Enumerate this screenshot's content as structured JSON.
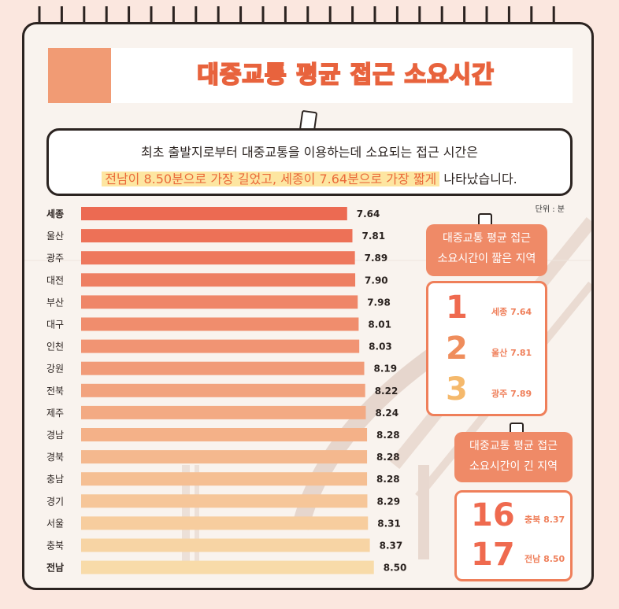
{
  "title": "대중교통 평균 접근 소요시간",
  "summary": {
    "line1": "최초 출발지로부터 대중교통을 이용하는데 소요되는 접근 시간은",
    "line2_highlight": "전남이 8.50분으로 가장 길었고, 세종이 7.64분으로 가장 짧게",
    "line2_rest": " 나타났습니다."
  },
  "unit_label": "단위 : 분",
  "chart_data": {
    "type": "bar",
    "orientation": "horizontal",
    "categories": [
      "세종",
      "울산",
      "광주",
      "대전",
      "부산",
      "대구",
      "인천",
      "강원",
      "전북",
      "제주",
      "경남",
      "경북",
      "충남",
      "경기",
      "서울",
      "충북",
      "전남"
    ],
    "values": [
      7.64,
      7.81,
      7.89,
      7.9,
      7.98,
      8.01,
      8.03,
      8.19,
      8.22,
      8.24,
      8.28,
      8.28,
      8.28,
      8.29,
      8.31,
      8.37,
      8.5
    ],
    "value_labels": [
      "7.64",
      "7.81",
      "7.89",
      "7.90",
      "7.98",
      "8.01",
      "8.03",
      "8.19",
      "8.22",
      "8.24",
      "8.28",
      "8.28",
      "8.28",
      "8.29",
      "8.31",
      "8.37",
      "8.50"
    ],
    "bold_categories": [
      "세종",
      "전남"
    ],
    "colors": {
      "first": "#ec6a52",
      "last": "#f8dba9"
    }
  },
  "short_card": {
    "title_line1": "대중교통 평균 접근",
    "title_line2": "소요시간이 짧은 지역",
    "items": [
      {
        "rank": "1",
        "label": "세종 7.64",
        "color": "#ef6a4f"
      },
      {
        "rank": "2",
        "label": "울산 7.81",
        "color": "#ef8d5c"
      },
      {
        "rank": "3",
        "label": "광주 7.89",
        "color": "#f5b96c"
      }
    ]
  },
  "long_card": {
    "title_line1": "대중교통 평균 접근",
    "title_line2": "소요시간이 긴 지역",
    "items": [
      {
        "rank": "16",
        "label": "충북 8.37",
        "color": "#ef6a4f"
      },
      {
        "rank": "17",
        "label": "전남 8.50",
        "color": "#ef6a4f"
      }
    ]
  }
}
